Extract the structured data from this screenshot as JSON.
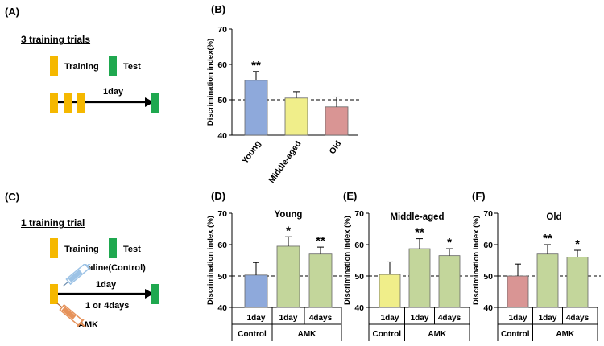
{
  "panels": {
    "A": {
      "label": "(A)",
      "heading": "3 training trials",
      "legend_training": "Training",
      "legend_test": "Test",
      "interval": "1day"
    },
    "C": {
      "label": "(C)",
      "heading": "1 training trial",
      "legend_training": "Training",
      "legend_test": "Test",
      "saline": "Saline(Control)",
      "interval": "1day",
      "amk_interval": "1 or 4days",
      "amk": "AMK"
    }
  },
  "colors": {
    "training": "#f5b800",
    "test": "#1fa84f",
    "young": "#8ea9db",
    "middle": "#f0ee8a",
    "old": "#d99594",
    "amk": "#c3d69b",
    "syringe_blue": "#9dc3e6",
    "syringe_orange": "#e6925a"
  },
  "chart_data": [
    {
      "id": "B",
      "panel_label": "(B)",
      "type": "bar",
      "title": "",
      "ylabel": "Discrimination index(%)",
      "ylim": [
        40,
        70
      ],
      "yticks": [
        40,
        50,
        60,
        70
      ],
      "categories": [
        "Young",
        "Middle-aged",
        "Old"
      ],
      "values": [
        55.5,
        50.5,
        48
      ],
      "errors": [
        2.5,
        1.8,
        2.8
      ],
      "significance": [
        "**",
        "",
        ""
      ],
      "colors": [
        "#8ea9db",
        "#f0ee8a",
        "#d99594"
      ],
      "reference_line": 50
    },
    {
      "id": "D",
      "panel_label": "(D)",
      "type": "bar",
      "title": "Young",
      "ylabel": "Discrimination index (%)",
      "ylim": [
        40,
        70
      ],
      "yticks": [
        40,
        50,
        60,
        70
      ],
      "categories": [
        "1day",
        "1day",
        "4days"
      ],
      "groups": [
        "Control",
        "AMK"
      ],
      "values": [
        50.3,
        59.5,
        57
      ],
      "errors": [
        4,
        3,
        2.2
      ],
      "significance": [
        "",
        "*",
        "**"
      ],
      "colors": [
        "#8ea9db",
        "#c3d69b",
        "#c3d69b"
      ],
      "reference_line": 50
    },
    {
      "id": "E",
      "panel_label": "(E)",
      "type": "bar",
      "title": "Middle-aged",
      "ylabel": "Discrimination index (%)",
      "ylim": [
        40,
        70
      ],
      "yticks": [
        40,
        50,
        60,
        70
      ],
      "categories": [
        "1day",
        "1day",
        "4days"
      ],
      "groups": [
        "Control",
        "AMK"
      ],
      "values": [
        50.5,
        58.7,
        56.5
      ],
      "errors": [
        4,
        3.2,
        2.2
      ],
      "significance": [
        "",
        "**",
        "*"
      ],
      "colors": [
        "#f0ee8a",
        "#c3d69b",
        "#c3d69b"
      ],
      "reference_line": 50
    },
    {
      "id": "F",
      "panel_label": "(F)",
      "type": "bar",
      "title": "Old",
      "ylabel": "Discrimination index (%)",
      "ylim": [
        40,
        70
      ],
      "yticks": [
        40,
        50,
        60,
        70
      ],
      "categories": [
        "1day",
        "1day",
        "4days"
      ],
      "groups": [
        "Control",
        "AMK"
      ],
      "values": [
        50,
        57,
        56
      ],
      "errors": [
        3.8,
        3,
        2.2
      ],
      "significance": [
        "",
        "**",
        "*"
      ],
      "colors": [
        "#d99594",
        "#c3d69b",
        "#c3d69b"
      ],
      "reference_line": 50
    }
  ]
}
